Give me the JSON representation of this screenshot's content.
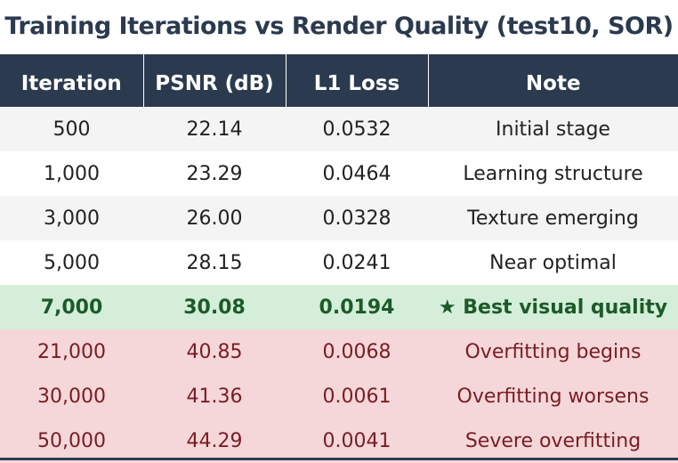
{
  "chart_data": {
    "type": "table",
    "title": "Training Iterations vs Render Quality (test10, SOR)",
    "columns": [
      "Iteration",
      "PSNR (dB)",
      "L1 Loss",
      "Note"
    ],
    "rows": [
      {
        "iteration": "500",
        "psnr": "22.14",
        "l1": "0.0532",
        "note": "Initial stage",
        "style": "odd"
      },
      {
        "iteration": "1,000",
        "psnr": "23.29",
        "l1": "0.0464",
        "note": "Learning structure",
        "style": "even"
      },
      {
        "iteration": "3,000",
        "psnr": "26.00",
        "l1": "0.0328",
        "note": "Texture emerging",
        "style": "odd"
      },
      {
        "iteration": "5,000",
        "psnr": "28.15",
        "l1": "0.0241",
        "note": "Near optimal",
        "style": "even"
      },
      {
        "iteration": "7,000",
        "psnr": "30.08",
        "l1": "0.0194",
        "note": "★ Best visual quality",
        "style": "best"
      },
      {
        "iteration": "21,000",
        "psnr": "40.85",
        "l1": "0.0068",
        "note": "Overfitting begins",
        "style": "over"
      },
      {
        "iteration": "30,000",
        "psnr": "41.36",
        "l1": "0.0061",
        "note": "Overfitting worsens",
        "style": "over"
      },
      {
        "iteration": "50,000",
        "psnr": "44.29",
        "l1": "0.0041",
        "note": "Severe overfitting",
        "style": "over"
      }
    ],
    "colors": {
      "header_bg": "#2b3a4f",
      "best_bg": "#d4eed9",
      "best_text": "#1c5a2a",
      "overfit_bg": "#f5d7d9",
      "overfit_text": "#7a1c22"
    }
  }
}
